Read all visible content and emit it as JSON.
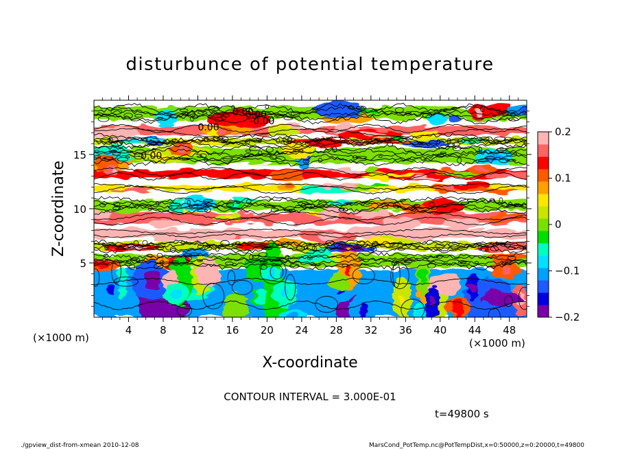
{
  "chart_data": {
    "type": "heatmap",
    "title": "disturbunce of potential temperature",
    "xlabel": "X-coordinate",
    "ylabel": "Z-coordinate",
    "x_unit_left": "(×1000 m)",
    "x_unit_right": "(×1000 m)",
    "xlim": [
      0,
      50
    ],
    "ylim": [
      0,
      20
    ],
    "xticks": [
      4,
      8,
      12,
      16,
      20,
      24,
      28,
      32,
      36,
      40,
      44,
      48
    ],
    "xtick_labels": [
      "4",
      "8",
      "12",
      "16",
      "20",
      "24",
      "28",
      "32",
      "36",
      "40",
      "44",
      "48"
    ],
    "yticks": [
      5,
      10,
      15
    ],
    "ytick_labels": [
      "5",
      "10",
      "15"
    ],
    "colorbar": {
      "range": [
        -0.2,
        0.2
      ],
      "ticks": [
        0.2,
        0.1,
        0,
        -0.1,
        -0.2
      ],
      "tick_labels": [
        "0.2",
        "0.1",
        "0",
        "−0.1",
        "−0.2"
      ],
      "colors": [
        "#7a00a8",
        "#0000e0",
        "#1e5aff",
        "#00a0ff",
        "#00e0ff",
        "#00ffc0",
        "#00e000",
        "#7be000",
        "#c8e600",
        "#ffe600",
        "#ffa000",
        "#ff5a00",
        "#ff0000",
        "#ff6464",
        "#ffb4b4"
      ]
    },
    "contour_interval": "CONTOUR INTERVAL = 3.000E-01",
    "contour_labels": [
      "0.00",
      "0.00",
      "-0.00",
      "0.00",
      "-0.00"
    ],
    "time_label": "t=49800 s",
    "grid": false,
    "bands": [
      {
        "z": [
          18.2,
          19.4
        ],
        "v": 0.0
      },
      {
        "z": [
          16.8,
          17.6
        ],
        "v": 0.16
      },
      {
        "z": [
          15.9,
          16.5
        ],
        "v": 0.02
      },
      {
        "z": [
          14.2,
          15.6
        ],
        "v": 0.0
      },
      {
        "z": [
          12.8,
          13.6
        ],
        "v": 0.14
      },
      {
        "z": [
          11.6,
          12.2
        ],
        "v": 0.04
      },
      {
        "z": [
          9.8,
          10.8
        ],
        "v": 0.0
      },
      {
        "z": [
          8.6,
          9.6
        ],
        "v": 0.16
      },
      {
        "z": [
          7.3,
          8.1
        ],
        "v": 0.18
      },
      {
        "z": [
          6.2,
          6.9
        ],
        "v": 0.02
      },
      {
        "z": [
          4.6,
          5.8
        ],
        "v": 0.0
      },
      {
        "z": [
          0.0,
          4.4
        ],
        "v": -0.12
      }
    ]
  },
  "footer": {
    "left": "./gpview_dist-from-xmean   2010-12-08",
    "right": "MarsCond_PotTemp.nc@PotTempDist,x=0:50000,z=0:20000,t=49800"
  }
}
